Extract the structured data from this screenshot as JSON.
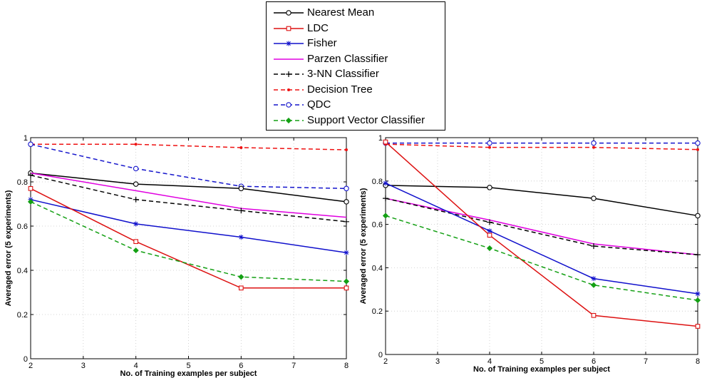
{
  "legend": {
    "entries": [
      {
        "key": "nearest_mean",
        "label": "Nearest Mean",
        "color": "#000000",
        "dash": "solid",
        "marker": "circle"
      },
      {
        "key": "ldc",
        "label": "LDC",
        "color": "#dd1111",
        "dash": "solid",
        "marker": "square"
      },
      {
        "key": "fisher",
        "label": "Fisher",
        "color": "#1010cc",
        "dash": "solid",
        "marker": "star"
      },
      {
        "key": "parzen",
        "label": "Parzen Classifier",
        "color": "#e000e0",
        "dash": "solid",
        "marker": "none"
      },
      {
        "key": "nn3",
        "label": "3-NN Classifier",
        "color": "#000000",
        "dash": "dashed",
        "marker": "plus"
      },
      {
        "key": "dtree",
        "label": "Decision Tree",
        "color": "#ee1111",
        "dash": "dashed",
        "marker": "dot"
      },
      {
        "key": "qdc",
        "label": "QDC",
        "color": "#1515cc",
        "dash": "dashed",
        "marker": "circle"
      },
      {
        "key": "svc",
        "label": "Support Vector Classifier",
        "color": "#14a014",
        "dash": "dashed",
        "marker": "diamond"
      }
    ]
  },
  "chart_data": [
    {
      "type": "line",
      "xlabel": "No. of Training examples per subject",
      "ylabel": "Averaged error (5 experiments)",
      "xlim": [
        2,
        8
      ],
      "ylim": [
        0,
        1
      ],
      "xticks": [
        2,
        3,
        4,
        5,
        6,
        7,
        8
      ],
      "yticks": [
        0,
        0.2,
        0.4,
        0.6,
        0.8,
        1
      ],
      "ytick_labels": [
        "0",
        "0.2",
        "0.4",
        "0.6",
        "0.8",
        "1"
      ],
      "grid": true,
      "x": [
        2,
        4,
        6,
        8
      ],
      "series": [
        {
          "key": "dtree",
          "name": "Decision Tree",
          "values": [
            0.97,
            0.97,
            0.955,
            0.945
          ]
        },
        {
          "key": "qdc",
          "name": "QDC",
          "values": [
            0.97,
            0.86,
            0.78,
            0.77
          ]
        },
        {
          "key": "nearest_mean",
          "name": "Nearest Mean",
          "values": [
            0.84,
            0.79,
            0.77,
            0.71
          ]
        },
        {
          "key": "parzen",
          "name": "Parzen Classifier",
          "values": [
            0.84,
            0.76,
            0.68,
            0.64
          ]
        },
        {
          "key": "nn3",
          "name": "3-NN Classifier",
          "values": [
            0.83,
            0.72,
            0.67,
            0.62
          ]
        },
        {
          "key": "fisher",
          "name": "Fisher",
          "values": [
            0.72,
            0.61,
            0.55,
            0.48
          ]
        },
        {
          "key": "ldc",
          "name": "LDC",
          "values": [
            0.77,
            0.53,
            0.32,
            0.32
          ]
        },
        {
          "key": "svc",
          "name": "Support Vector Classifier",
          "values": [
            0.71,
            0.49,
            0.37,
            0.35
          ]
        }
      ]
    },
    {
      "type": "line",
      "xlabel": "No. of Training examples per subject",
      "ylabel": "Averaged error (5 experiments)",
      "xlim": [
        2,
        8
      ],
      "ylim": [
        0,
        1
      ],
      "xticks": [
        2,
        3,
        4,
        5,
        6,
        7,
        8
      ],
      "yticks": [
        0,
        0.2,
        0.4,
        0.6,
        0.8,
        1
      ],
      "ytick_labels": [
        "0",
        "0.2",
        "0.4",
        "0.6",
        "0.8",
        "1"
      ],
      "grid": true,
      "x": [
        2,
        4,
        6,
        8
      ],
      "series": [
        {
          "key": "qdc",
          "name": "QDC",
          "values": [
            0.975,
            0.975,
            0.975,
            0.975
          ]
        },
        {
          "key": "dtree",
          "name": "Decision Tree",
          "values": [
            0.97,
            0.955,
            0.955,
            0.945
          ]
        },
        {
          "key": "nearest_mean",
          "name": "Nearest Mean",
          "values": [
            0.78,
            0.77,
            0.72,
            0.64
          ]
        },
        {
          "key": "parzen",
          "name": "Parzen Classifier",
          "values": [
            0.72,
            0.62,
            0.51,
            0.46
          ]
        },
        {
          "key": "nn3",
          "name": "3-NN Classifier",
          "values": [
            0.72,
            0.61,
            0.5,
            0.46
          ]
        },
        {
          "key": "fisher",
          "name": "Fisher",
          "values": [
            0.79,
            0.57,
            0.35,
            0.28
          ]
        },
        {
          "key": "ldc",
          "name": "LDC",
          "values": [
            0.98,
            0.55,
            0.18,
            0.13
          ]
        },
        {
          "key": "svc",
          "name": "Support Vector Classifier",
          "values": [
            0.64,
            0.49,
            0.32,
            0.25
          ]
        }
      ]
    }
  ]
}
